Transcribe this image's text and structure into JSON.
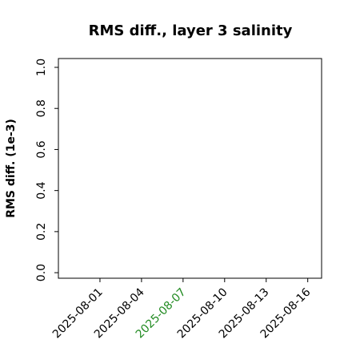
{
  "chart_data": {
    "type": "line",
    "title": "RMS diff., layer 3 salinity",
    "ylabel": "RMS diff. (1e-3)",
    "xlim": [
      "2025-07-29",
      "2025-08-17"
    ],
    "xticks": [
      "2025-08-01",
      "2025-08-04",
      "2025-08-07",
      "2025-08-10",
      "2025-08-13",
      "2025-08-16"
    ],
    "xtick_colors": [
      "#000000",
      "#000000",
      "#228b22",
      "#000000",
      "#000000",
      "#000000"
    ],
    "ylim": [
      -0.027,
      1.043
    ],
    "yticks": [
      {
        "value": 0,
        "label": "0.0"
      },
      {
        "value": 0.2,
        "label": "0.2"
      },
      {
        "value": 0.4,
        "label": "0.4"
      },
      {
        "value": 0.6,
        "label": "0.6"
      },
      {
        "value": 0.8,
        "label": "0.8"
      },
      {
        "value": 1,
        "label": "1.0"
      }
    ],
    "grid": false,
    "series": []
  }
}
